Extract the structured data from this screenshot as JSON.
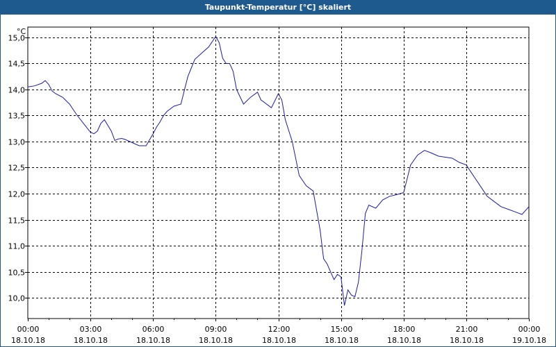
{
  "window": {
    "title": "Taupunkt-Temperatur [°C] skaliert"
  },
  "colors": {
    "titlebar": "#1f5a8f",
    "line": "#1a1ab3",
    "grid": "#000000"
  },
  "chart_data": {
    "type": "line",
    "title": "Taupunkt-Temperatur [°C] skaliert",
    "ylabel": "°C",
    "xlabel": "",
    "ylim": [
      9.6,
      15.2
    ],
    "xlim": [
      "2018-10-18 00:00",
      "2018-10-19 00:00"
    ],
    "grid": true,
    "y_ticks": [
      "10,0",
      "10,5",
      "11,0",
      "11,5",
      "12,0",
      "12,5",
      "13,0",
      "13,5",
      "14,0",
      "14,5",
      "15,0"
    ],
    "x_ticks": [
      {
        "time": "00:00",
        "date": "18.10.18"
      },
      {
        "time": "03:00",
        "date": "18.10.18"
      },
      {
        "time": "06:00",
        "date": "18.10.18"
      },
      {
        "time": "09:00",
        "date": "18.10.18"
      },
      {
        "time": "12:00",
        "date": "18.10.18"
      },
      {
        "time": "15:00",
        "date": "18.10.18"
      },
      {
        "time": "18:00",
        "date": "18.10.18"
      },
      {
        "time": "21:00",
        "date": "18.10.18"
      },
      {
        "time": "00:00",
        "date": "19.10.18"
      }
    ],
    "series": [
      {
        "x": [
          "00:00",
          "00:20",
          "00:40",
          "00:50",
          "01:00",
          "01:10",
          "01:20",
          "01:40",
          "02:00",
          "02:20",
          "02:40",
          "03:00",
          "03:10",
          "03:20",
          "03:30",
          "03:40",
          "04:00",
          "04:10",
          "04:20",
          "04:30",
          "04:40",
          "05:00",
          "05:20",
          "05:40",
          "06:00",
          "06:10",
          "06:20",
          "06:30",
          "06:40",
          "07:00",
          "07:20",
          "07:40",
          "08:00",
          "08:20",
          "08:40",
          "09:00",
          "09:10",
          "09:20",
          "09:30",
          "09:40",
          "09:50",
          "10:00",
          "10:20",
          "10:40",
          "11:00",
          "11:10",
          "11:20",
          "11:40",
          "12:00",
          "12:10",
          "12:20",
          "12:40",
          "13:00",
          "13:20",
          "13:40",
          "14:00",
          "14:10",
          "14:20",
          "14:40",
          "14:50",
          "15:00",
          "15:10",
          "15:20",
          "15:30",
          "15:40",
          "15:50",
          "16:00",
          "16:10",
          "16:20",
          "16:40",
          "17:00",
          "17:20",
          "17:40",
          "18:00",
          "18:20",
          "18:40",
          "19:00",
          "19:20",
          "19:40",
          "20:00",
          "20:20",
          "20:40",
          "21:00",
          "21:20",
          "21:40",
          "22:00",
          "22:20",
          "22:40",
          "23:00",
          "23:20",
          "23:40",
          "24:00"
        ],
        "y": [
          14.05,
          14.07,
          14.12,
          14.17,
          14.1,
          13.97,
          13.92,
          13.85,
          13.72,
          13.52,
          13.35,
          13.18,
          13.15,
          13.2,
          13.35,
          13.42,
          13.2,
          13.02,
          13.05,
          13.06,
          13.04,
          12.98,
          12.92,
          12.92,
          13.15,
          13.28,
          13.38,
          13.5,
          13.58,
          13.68,
          13.72,
          14.25,
          14.58,
          14.7,
          14.82,
          15.02,
          14.9,
          14.6,
          14.5,
          14.5,
          14.35,
          14.0,
          13.72,
          13.85,
          13.95,
          13.8,
          13.75,
          13.65,
          13.92,
          13.8,
          13.42,
          13.0,
          12.35,
          12.15,
          12.05,
          11.3,
          10.75,
          10.65,
          10.35,
          10.45,
          10.4,
          9.85,
          10.15,
          10.05,
          10.02,
          10.3,
          10.9,
          11.62,
          11.78,
          11.72,
          11.88,
          11.95,
          11.98,
          12.02,
          12.55,
          12.74,
          12.83,
          12.78,
          12.72,
          12.7,
          12.68,
          12.6,
          12.55,
          12.35,
          12.15,
          11.95,
          11.85,
          11.75,
          11.7,
          11.65,
          11.6,
          11.75
        ]
      }
    ]
  }
}
